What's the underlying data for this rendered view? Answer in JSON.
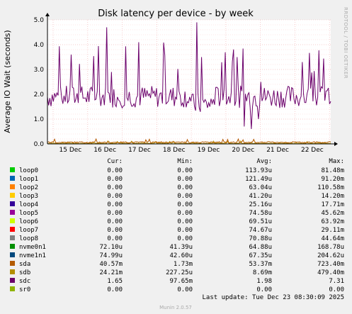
{
  "chart_data": {
    "type": "line",
    "title": "Disk latency per device - by week",
    "ylabel": "Average IO Wait (seconds)",
    "side_label": "RRDTOOL / TOBI OETIKER",
    "ylim": [
      0,
      5
    ],
    "yticks": [
      "0.0",
      "1.0",
      "2.0",
      "3.0",
      "4.0",
      "5.0"
    ],
    "grid": true,
    "xlabels": [
      "15 Dec",
      "16 Dec",
      "17 Dec",
      "18 Dec",
      "19 Dec",
      "20 Dec",
      "21 Dec",
      "22 Dec"
    ],
    "columns": [
      "Cur:",
      "Min:",
      "Avg:",
      "Max:"
    ],
    "series": [
      {
        "name": "loop0",
        "color": "#00cc00",
        "cur": "0.00",
        "min": "0.00",
        "avg": "113.93u",
        "max": "81.48m"
      },
      {
        "name": "loop1",
        "color": "#0066b3",
        "cur": "0.00",
        "min": "0.00",
        "avg": "121.49u",
        "max": "91.20m"
      },
      {
        "name": "loop2",
        "color": "#ff8000",
        "cur": "0.00",
        "min": "0.00",
        "avg": "63.04u",
        "max": "110.58m"
      },
      {
        "name": "loop3",
        "color": "#ffcc00",
        "cur": "0.00",
        "min": "0.00",
        "avg": "41.20u",
        "max": "14.20m"
      },
      {
        "name": "loop4",
        "color": "#330099",
        "cur": "0.00",
        "min": "0.00",
        "avg": "25.16u",
        "max": "17.71m"
      },
      {
        "name": "loop5",
        "color": "#990099",
        "cur": "0.00",
        "min": "0.00",
        "avg": "74.58u",
        "max": "45.62m"
      },
      {
        "name": "loop6",
        "color": "#ccff00",
        "cur": "0.00",
        "min": "0.00",
        "avg": "69.51u",
        "max": "63.92m"
      },
      {
        "name": "loop7",
        "color": "#ff0000",
        "cur": "0.00",
        "min": "0.00",
        "avg": "74.67u",
        "max": "29.11m"
      },
      {
        "name": "loop8",
        "color": "#808080",
        "cur": "0.00",
        "min": "0.00",
        "avg": "70.88u",
        "max": "44.64m"
      },
      {
        "name": "nvme0n1",
        "color": "#008f00",
        "cur": "72.10u",
        "min": "41.39u",
        "avg": "64.88u",
        "max": "168.78u"
      },
      {
        "name": "nvme1n1",
        "color": "#00487d",
        "cur": "74.99u",
        "min": "42.60u",
        "avg": "67.35u",
        "max": "204.62u"
      },
      {
        "name": "sda",
        "color": "#b35a00",
        "cur": "40.57m",
        "min": "1.73m",
        "avg": "53.37m",
        "max": "723.40m"
      },
      {
        "name": "sdb",
        "color": "#b38f00",
        "cur": "24.21m",
        "min": "227.25u",
        "avg": "8.69m",
        "max": "479.40m"
      },
      {
        "name": "sdc",
        "color": "#6b006b",
        "cur": "1.65",
        "min": "97.65m",
        "avg": "1.98",
        "max": "7.31"
      },
      {
        "name": "sr0",
        "color": "#8fb300",
        "cur": "0.00",
        "min": "0.00",
        "avg": "0.00",
        "max": "0.00"
      }
    ]
  },
  "last_update": "Last update: Tue Dec 23 08:30:09 2025",
  "footer": "Munin 2.0.57"
}
